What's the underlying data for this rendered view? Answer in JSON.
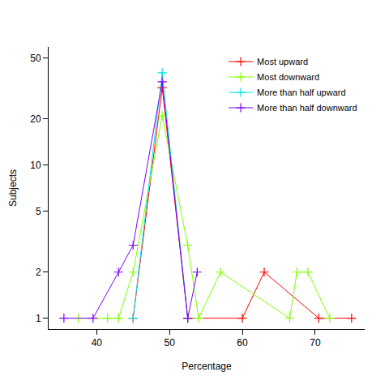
{
  "chart_data": {
    "type": "line",
    "x_label": "Percentage",
    "y_label": "Subjects",
    "log": "y",
    "grid": false,
    "legend": "top right",
    "marker": "plus",
    "xlim": [
      33.4,
      76.8
    ],
    "xticks": [
      40,
      50,
      60,
      70
    ],
    "ylim": [
      0.85,
      59
    ],
    "yticks": [
      1,
      2,
      5,
      10,
      20,
      50
    ],
    "series": [
      {
        "name": "Most upward",
        "color": "#ff0000",
        "x": [
          45,
          49,
          52.5,
          60,
          63,
          70.5,
          75
        ],
        "values": [
          1,
          32,
          1,
          1,
          2,
          1,
          1
        ]
      },
      {
        "name": "Most downward",
        "color": "#80ff00",
        "x": [
          37.5,
          41.5,
          43,
          45,
          49,
          52.5,
          54,
          57,
          66.5,
          67.5,
          69,
          72
        ],
        "values": [
          1,
          1,
          1,
          2,
          21,
          3,
          1,
          2,
          1,
          2,
          2,
          1
        ]
      },
      {
        "name": "More than half upward",
        "color": "#00e5e5",
        "x": [
          45,
          49,
          52.5
        ],
        "values": [
          1,
          40,
          1
        ]
      },
      {
        "name": "More than half downward",
        "color": "#8000ff",
        "x": [
          35.5,
          39.5,
          43,
          45,
          49,
          52.5,
          53.8
        ],
        "values": [
          1,
          1,
          2,
          3,
          35,
          1,
          2
        ]
      }
    ]
  }
}
